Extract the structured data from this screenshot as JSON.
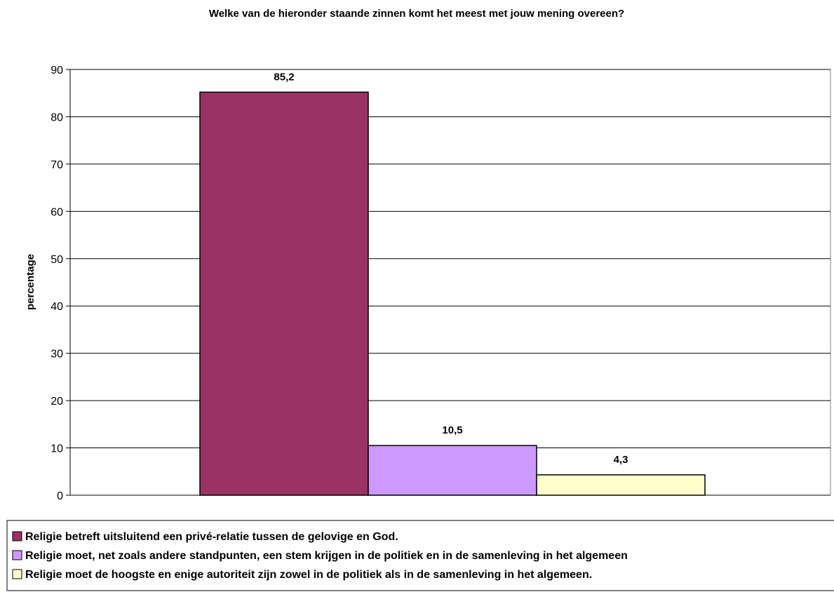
{
  "chart_data": {
    "type": "bar",
    "title": "Welke van de hieronder staande zinnen komt het meest met jouw mening overeen?",
    "xlabel": "",
    "ylabel": "percentage",
    "ylim": [
      0,
      90
    ],
    "yticks": [
      0,
      10,
      20,
      30,
      40,
      50,
      60,
      70,
      80,
      90
    ],
    "grid": true,
    "legend_position": "bottom",
    "series": [
      {
        "name": "Religie betreft uitsluitend een privé-relatie tussen de gelovige en God.",
        "value": 85.2,
        "label": "85,2",
        "color": "#993366"
      },
      {
        "name": "Religie moet, net zoals andere standpunten, een stem krijgen in de politiek en in de samenleving in het algemeen",
        "value": 10.5,
        "label": "10,5",
        "color": "#CC99FF"
      },
      {
        "name": "Religie moet de hoogste en enige autoriteit zijn zowel in de politiek als in de samenleving in het algemeen.",
        "value": 4.3,
        "label": "4,3",
        "color": "#FFFFCC"
      }
    ]
  }
}
